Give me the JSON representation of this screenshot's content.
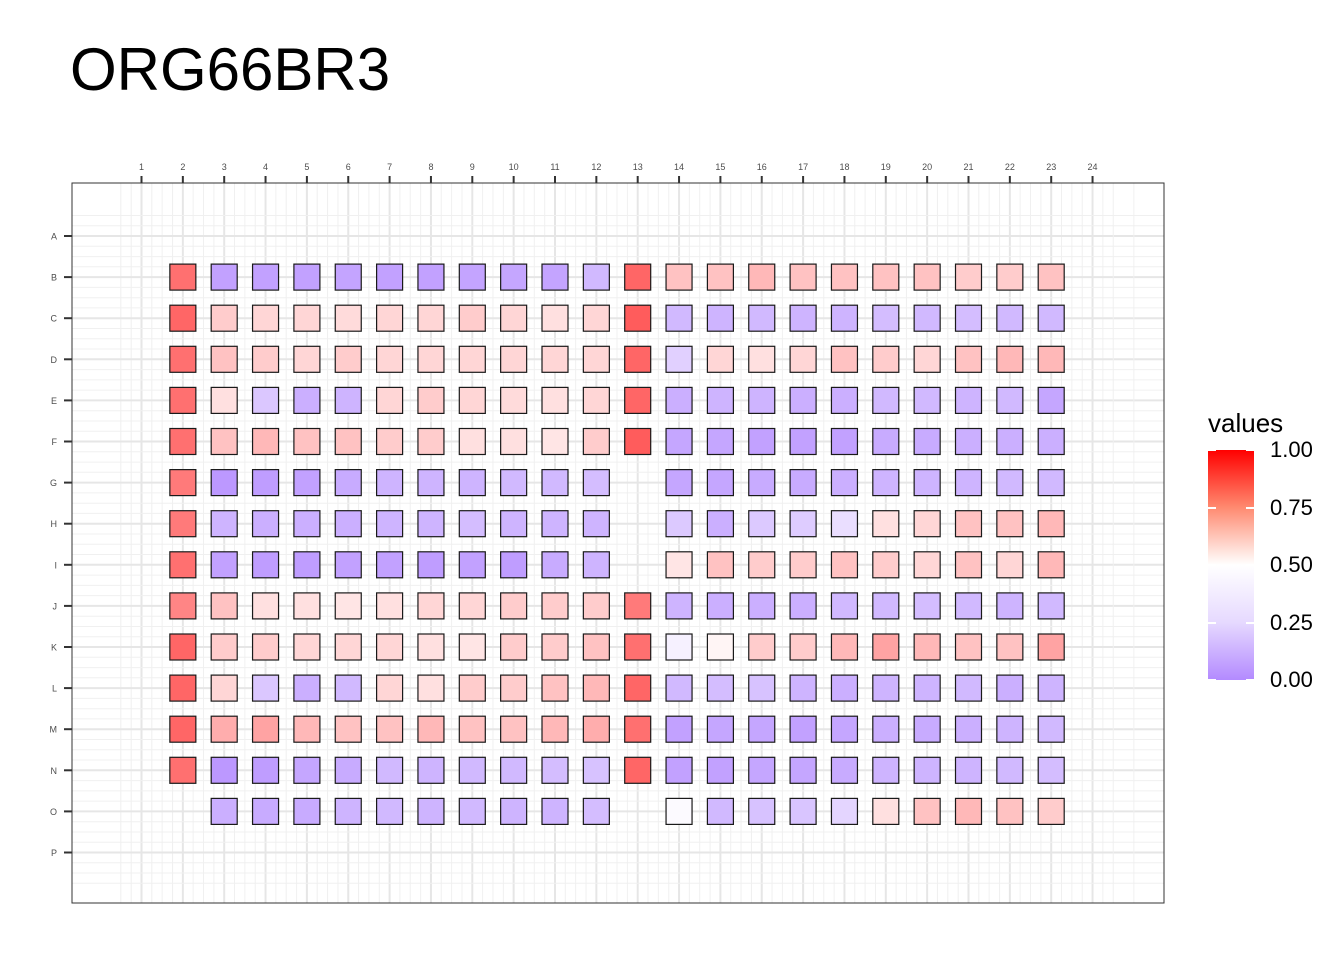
{
  "chart_data": {
    "type": "heatmap",
    "title": "ORG66BR3",
    "x_ticks": [
      "1",
      "2",
      "3",
      "4",
      "5",
      "6",
      "7",
      "8",
      "9",
      "10",
      "11",
      "12",
      "13",
      "14",
      "15",
      "16",
      "17",
      "18",
      "19",
      "20",
      "21",
      "22",
      "23",
      "24"
    ],
    "y_ticks": [
      "A",
      "B",
      "C",
      "D",
      "E",
      "F",
      "G",
      "H",
      "I",
      "J",
      "K",
      "L",
      "M",
      "N",
      "O",
      "P"
    ],
    "legend": {
      "title": "values",
      "labels": [
        "1.00",
        "0.75",
        "0.50",
        "0.25",
        "0.00"
      ],
      "colors": {
        "high": "#ff0000",
        "mid": "#ffffff",
        "low": "#b38aff"
      },
      "placement": "right"
    },
    "grid": true,
    "rows": [
      "B",
      "C",
      "D",
      "E",
      "F",
      "G",
      "H",
      "I",
      "J",
      "K",
      "L",
      "M",
      "N",
      "O"
    ],
    "columns": [
      2,
      3,
      4,
      5,
      6,
      7,
      8,
      9,
      10,
      11,
      12,
      13,
      14,
      15,
      16,
      17,
      18,
      19,
      20,
      21,
      22,
      23
    ],
    "values": [
      [
        0.78,
        0.1,
        0.1,
        0.1,
        0.11,
        0.1,
        0.1,
        0.11,
        0.12,
        0.11,
        0.2,
        0.8,
        0.62,
        0.62,
        0.64,
        0.62,
        0.62,
        0.62,
        0.62,
        0.6,
        0.6,
        0.62
      ],
      [
        0.8,
        0.6,
        0.58,
        0.58,
        0.57,
        0.58,
        0.58,
        0.6,
        0.58,
        0.56,
        0.58,
        0.82,
        0.2,
        0.18,
        0.2,
        0.18,
        0.18,
        0.22,
        0.2,
        0.22,
        0.2,
        0.2
      ],
      [
        0.78,
        0.62,
        0.6,
        0.58,
        0.6,
        0.58,
        0.58,
        0.58,
        0.58,
        0.58,
        0.58,
        0.8,
        0.3,
        0.58,
        0.56,
        0.58,
        0.62,
        0.6,
        0.58,
        0.62,
        0.64,
        0.64
      ],
      [
        0.78,
        0.56,
        0.26,
        0.16,
        0.18,
        0.58,
        0.6,
        0.58,
        0.57,
        0.56,
        0.58,
        0.8,
        0.16,
        0.18,
        0.18,
        0.16,
        0.16,
        0.2,
        0.2,
        0.18,
        0.2,
        0.12
      ],
      [
        0.78,
        0.62,
        0.64,
        0.62,
        0.62,
        0.6,
        0.6,
        0.56,
        0.56,
        0.55,
        0.6,
        0.82,
        0.12,
        0.12,
        0.1,
        0.1,
        0.1,
        0.14,
        0.14,
        0.16,
        0.16,
        0.16
      ],
      [
        0.76,
        0.06,
        0.08,
        0.1,
        0.14,
        0.18,
        0.18,
        0.18,
        0.2,
        0.2,
        0.22,
        null,
        0.12,
        0.12,
        0.14,
        0.14,
        0.16,
        0.18,
        0.18,
        0.18,
        0.2,
        0.2
      ],
      [
        0.76,
        0.18,
        0.16,
        0.16,
        0.16,
        0.18,
        0.18,
        0.22,
        0.18,
        0.18,
        0.18,
        null,
        0.27,
        0.16,
        0.27,
        0.28,
        0.36,
        0.56,
        0.58,
        0.62,
        0.62,
        0.64
      ],
      [
        0.78,
        0.1,
        0.08,
        0.08,
        0.1,
        0.1,
        0.08,
        0.1,
        0.08,
        0.14,
        0.18,
        null,
        0.55,
        0.62,
        0.6,
        0.6,
        0.62,
        0.6,
        0.58,
        0.62,
        0.58,
        0.64
      ],
      [
        0.74,
        0.62,
        0.56,
        0.56,
        0.55,
        0.56,
        0.58,
        0.58,
        0.6,
        0.6,
        0.6,
        0.76,
        0.18,
        0.16,
        0.16,
        0.16,
        0.2,
        0.2,
        0.22,
        0.2,
        0.18,
        0.2
      ],
      [
        0.8,
        0.6,
        0.6,
        0.58,
        0.58,
        0.58,
        0.56,
        0.55,
        0.6,
        0.6,
        0.62,
        0.78,
        0.44,
        0.52,
        0.6,
        0.6,
        0.64,
        0.68,
        0.64,
        0.62,
        0.62,
        0.68
      ],
      [
        0.8,
        0.58,
        0.26,
        0.16,
        0.2,
        0.58,
        0.56,
        0.6,
        0.6,
        0.62,
        0.64,
        0.8,
        0.2,
        0.22,
        0.24,
        0.18,
        0.16,
        0.18,
        0.18,
        0.2,
        0.16,
        0.18
      ],
      [
        0.8,
        0.66,
        0.68,
        0.64,
        0.62,
        0.62,
        0.64,
        0.62,
        0.62,
        0.64,
        0.66,
        0.78,
        0.1,
        0.12,
        0.12,
        0.1,
        0.12,
        0.16,
        0.14,
        0.16,
        0.18,
        0.2
      ],
      [
        0.78,
        0.06,
        0.08,
        0.12,
        0.14,
        0.2,
        0.18,
        0.2,
        0.2,
        0.22,
        0.24,
        0.8,
        0.1,
        0.1,
        0.12,
        0.12,
        0.14,
        0.18,
        0.18,
        0.18,
        0.2,
        0.22
      ],
      [
        null,
        0.16,
        0.14,
        0.14,
        0.18,
        0.2,
        0.18,
        0.2,
        0.18,
        0.18,
        0.22,
        null,
        0.48,
        0.2,
        0.24,
        0.25,
        0.32,
        0.56,
        0.62,
        0.64,
        0.62,
        0.6
      ]
    ]
  }
}
